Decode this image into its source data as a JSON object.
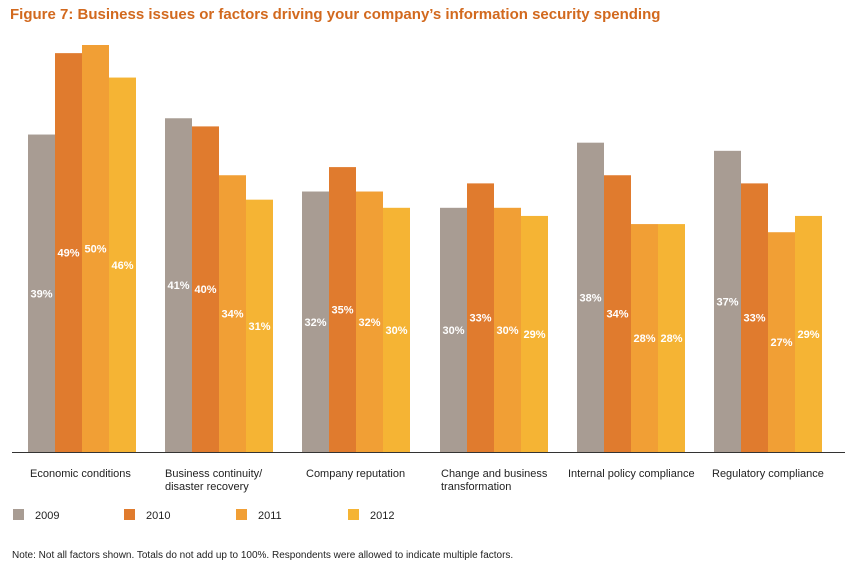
{
  "chart_data": {
    "type": "bar",
    "title": "Figure 7: Business issues or factors driving your company’s information security spending",
    "categories": [
      [
        "Economic conditions"
      ],
      [
        "Business continuity/",
        "disaster recovery"
      ],
      [
        "Company reputation"
      ],
      [
        "Change and business",
        "transformation"
      ],
      [
        "Internal policy compliance"
      ],
      [
        "Regulatory compliance"
      ]
    ],
    "series": [
      {
        "name": "2009",
        "color": "#a89c93",
        "values": [
          39,
          41,
          32,
          30,
          38,
          37
        ]
      },
      {
        "name": "2010",
        "color": "#e07b2e",
        "values": [
          49,
          40,
          35,
          33,
          34,
          33
        ]
      },
      {
        "name": "2011",
        "color": "#f19f35",
        "values": [
          50,
          34,
          32,
          30,
          28,
          27
        ]
      },
      {
        "name": "2012",
        "color": "#f5b434",
        "values": [
          46,
          31,
          30,
          29,
          28,
          29
        ]
      }
    ],
    "value_suffix": "%",
    "ylim": [
      0,
      50
    ],
    "grid": false,
    "legend_position": "bottom-left"
  },
  "note": "Note: Not all factors shown. Totals do not add up to 100%. Respondents were allowed to indicate multiple factors."
}
